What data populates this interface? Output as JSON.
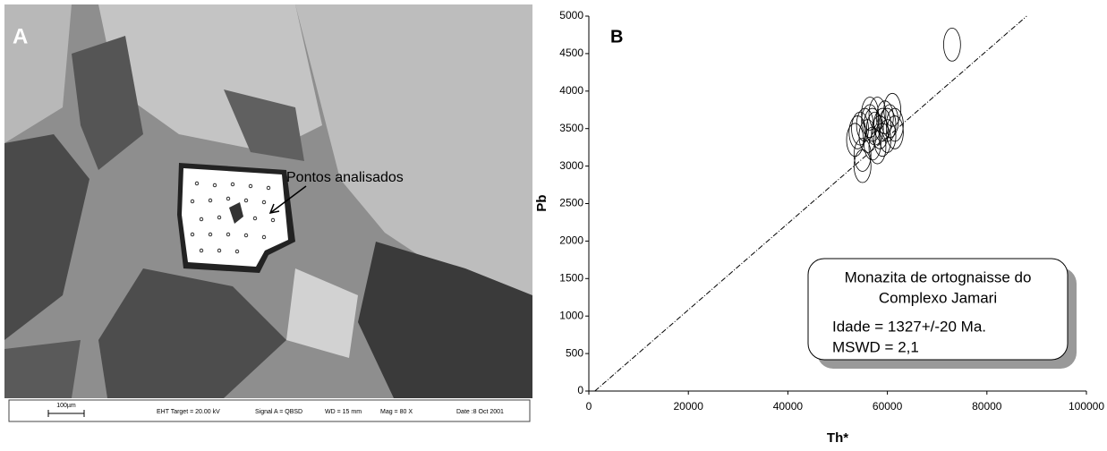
{
  "image_panel": {
    "label": "A",
    "annotation": "Pontos analisados",
    "scale_bar": "100µm",
    "footer": [
      "EHT Target = 20.00 kV",
      "Signal A = QBSD",
      "WD = 15 mm",
      "Mag = 80 X",
      "Date :8 Oct 2001"
    ]
  },
  "chart_data": {
    "type": "scatter",
    "label": "B",
    "xlabel": "Th*",
    "ylabel": "Pb",
    "xlim": [
      0,
      100000
    ],
    "ylim": [
      0,
      5000
    ],
    "xticks": [
      0,
      20000,
      40000,
      60000,
      80000,
      100000
    ],
    "yticks": [
      0,
      500,
      1000,
      1500,
      2000,
      2500,
      3000,
      3500,
      4000,
      4500,
      5000
    ],
    "grid": false,
    "series": [
      {
        "color": "#000000",
        "x": [
          73000,
          53500,
          54500,
          55000,
          55500,
          56000,
          56500,
          57000,
          57500,
          58000,
          58500,
          59000,
          59500,
          60000,
          60500,
          61000,
          61500,
          55000,
          56500,
          58000,
          60000,
          61500,
          54000,
          57000,
          59000
        ],
        "values": [
          4620,
          3350,
          3500,
          3150,
          3550,
          3400,
          3600,
          3300,
          3500,
          3700,
          3450,
          3550,
          3650,
          3400,
          3600,
          3750,
          3550,
          3000,
          3700,
          3250,
          3550,
          3450,
          3450,
          3550,
          3350
        ],
        "x_err": 1700,
        "y_err": 220
      }
    ],
    "isochron": {
      "x": [
        1200,
        88000
      ],
      "y": [
        0,
        5000
      ]
    },
    "legend_box": [
      "Monazita de ortognaisse do",
      "Complexo Jamari",
      "Idade = 1327+/-20 Ma.",
      "MSWD = 2,1"
    ]
  }
}
